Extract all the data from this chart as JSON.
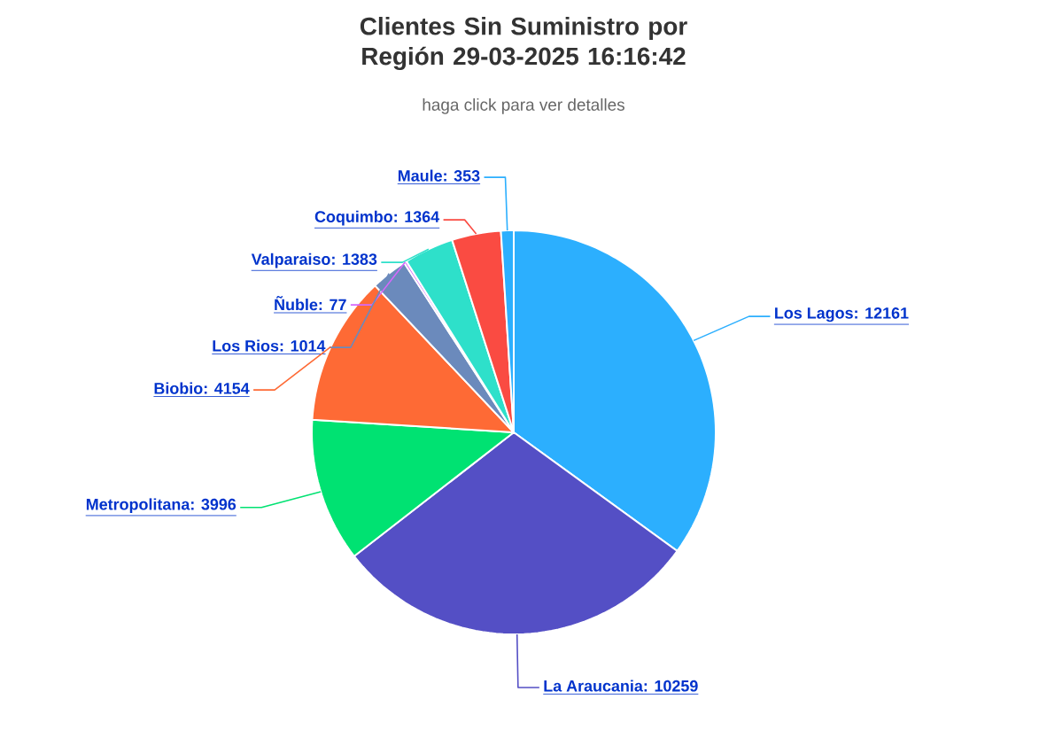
{
  "chart_data": {
    "type": "pie",
    "title": "Clientes Sin Suministro por Región 29-03-2025 16:16:42",
    "subtitle": "haga click para ver detalles",
    "categories": [
      "Los Lagos",
      "La Araucania",
      "Metropolitana",
      "Biobio",
      "Los Rios",
      "Ñuble",
      "Valparaiso",
      "Coquimbo",
      "Maule"
    ],
    "values": [
      12161,
      10259,
      3996,
      4154,
      1014,
      77,
      1383,
      1364,
      353
    ],
    "value_labels": [
      ": 12161",
      ": 10259",
      ": 3996",
      ": 4154",
      ": 1014",
      ": 77",
      ": 1383",
      ": 1364",
      ": 353"
    ],
    "colors": [
      "#2caffe",
      "#544fc5",
      "#00e272",
      "#fe6a35",
      "#6b8abc",
      "#d568fb",
      "#2ee0ca",
      "#fa4b42",
      "#2caffe"
    ]
  }
}
